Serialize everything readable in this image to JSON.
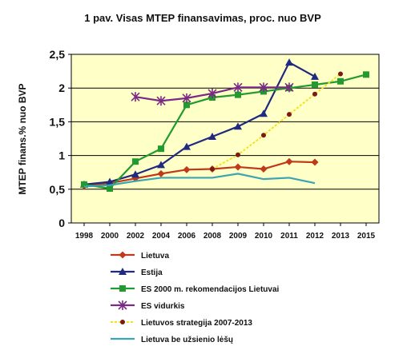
{
  "chart_data": {
    "type": "line",
    "title": "1 pav. Visas MTEP finansavimas, proc. nuo BVP",
    "ylabel": "MTEP finans.% nuo BVP",
    "xlabel": "",
    "categories": [
      "1998",
      "2000",
      "2002",
      "2004",
      "2006",
      "2008",
      "2009",
      "2010",
      "2011",
      "2012",
      "2013",
      "2015"
    ],
    "ylim": [
      0,
      2.5
    ],
    "yticks": [
      "0",
      "0,5",
      "1",
      "1,5",
      "2",
      "2,5"
    ],
    "plot_background": "#ffffc8",
    "grid": "horizontal",
    "legend_position": "bottom",
    "series": [
      {
        "name": "Lietuva",
        "color": "#c0391b",
        "marker": "diamond",
        "values": [
          0.55,
          0.59,
          0.66,
          0.73,
          0.79,
          0.8,
          0.83,
          0.8,
          0.91,
          0.9,
          null,
          null
        ]
      },
      {
        "name": "Estija",
        "color": "#1f2a80",
        "marker": "triangle",
        "values": [
          0.57,
          0.61,
          0.72,
          0.86,
          1.13,
          1.28,
          1.43,
          1.62,
          2.38,
          2.17,
          null,
          null
        ]
      },
      {
        "name": "ES 2000 m. rekomendacijos Lietuvai",
        "color": "#219a2f",
        "marker": "square",
        "values": [
          0.57,
          0.51,
          0.91,
          1.1,
          1.75,
          1.86,
          1.9,
          1.95,
          2.0,
          2.05,
          2.1,
          2.2
        ]
      },
      {
        "name": "ES vidurkis",
        "color": "#7a2a83",
        "marker": "star",
        "values": [
          null,
          null,
          1.87,
          1.81,
          1.85,
          1.92,
          2.01,
          2.01,
          2.01,
          null,
          null,
          null
        ]
      },
      {
        "name": "Lietuvos strategija 2007-2013",
        "color": "#f3e21e",
        "marker": "circle",
        "marker_color": "#7a1a12",
        "dashed": true,
        "values": [
          null,
          null,
          null,
          null,
          null,
          0.8,
          1.01,
          1.3,
          1.61,
          1.91,
          2.21,
          null
        ]
      },
      {
        "name": "Lietuva be užsienio lėšų",
        "color": "#3aa4b4",
        "marker": "none",
        "values": [
          0.54,
          0.56,
          0.62,
          0.67,
          0.67,
          0.67,
          0.73,
          0.65,
          0.67,
          0.59,
          null,
          null
        ]
      }
    ]
  }
}
